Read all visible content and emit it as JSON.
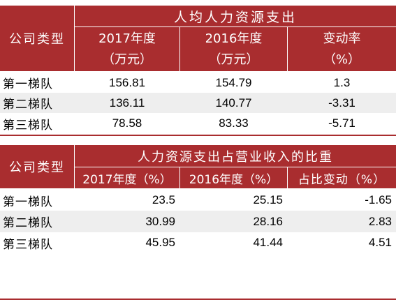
{
  "table1": {
    "group_header": "人均人力资源支出",
    "row_header": "公司类型",
    "col1": {
      "line1": "2017年度",
      "line2": "（万元）"
    },
    "col2": {
      "line1": "2016年度",
      "line2": "（万元）"
    },
    "col3": {
      "line1": "变动率",
      "line2": "（%）"
    },
    "rows": [
      {
        "name": "第一梯队",
        "v2017": "156.81",
        "v2016": "154.79",
        "change": "1.3"
      },
      {
        "name": "第二梯队",
        "v2017": "136.11",
        "v2016": "140.77",
        "change": "-3.31"
      },
      {
        "name": "第三梯队",
        "v2017": "78.58",
        "v2016": "83.33",
        "change": "-5.71"
      }
    ]
  },
  "table2": {
    "group_header": "人力资源支出占营业收入的比重",
    "row_header": "公司类型",
    "col1": "2017年度（%）",
    "col2": "2016年度（%）",
    "col3": "占比变动（%）",
    "rows": [
      {
        "name": "第一梯队",
        "v2017": "23.5",
        "v2016": "25.15",
        "change": "-1.65"
      },
      {
        "name": "第二梯队",
        "v2017": "30.99",
        "v2016": "28.16",
        "change": "2.83"
      },
      {
        "name": "第三梯队",
        "v2017": "45.95",
        "v2016": "41.44",
        "change": "4.51"
      }
    ]
  },
  "colors": {
    "header_red": "#a92d2f",
    "stripe_gray": "#eeeeee"
  }
}
